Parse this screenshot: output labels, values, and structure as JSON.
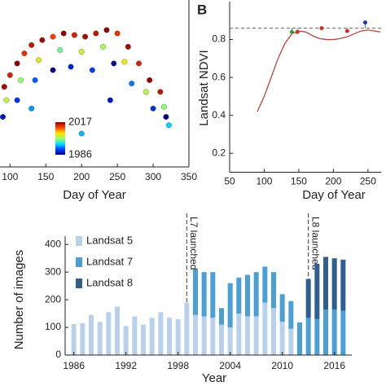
{
  "chart_data": [
    {
      "type": "scatter",
      "xlabel": "Day of Year",
      "xlim": [
        86,
        350
      ],
      "xticks": [
        100,
        150,
        200,
        250,
        300,
        350
      ],
      "ylim": [
        0,
        1
      ],
      "x": [
        92,
        100,
        110,
        120,
        130,
        145,
        160,
        175,
        190,
        205,
        220,
        235,
        250,
        265,
        280,
        295,
        310,
        95,
        115,
        140,
        170,
        200,
        230,
        260,
        290,
        315,
        90,
        110,
        135,
        160,
        185,
        215,
        245,
        270,
        300,
        318,
        130,
        200,
        240,
        322
      ],
      "values": [
        0.48,
        0.55,
        0.62,
        0.68,
        0.73,
        0.76,
        0.78,
        0.8,
        0.79,
        0.78,
        0.8,
        0.82,
        0.8,
        0.72,
        0.62,
        0.52,
        0.45,
        0.4,
        0.52,
        0.64,
        0.7,
        0.69,
        0.72,
        0.63,
        0.45,
        0.36,
        0.3,
        0.4,
        0.52,
        0.58,
        0.6,
        0.58,
        0.62,
        0.5,
        0.35,
        0.3,
        0.35,
        0.2,
        0.4,
        0.25
      ],
      "years": [
        2016,
        2014,
        2017,
        2013,
        2015,
        2016,
        2012,
        2017,
        2014,
        2016,
        2015,
        2017,
        2013,
        2016,
        2014,
        2017,
        2015,
        2003,
        2001,
        2005,
        2000,
        2004,
        2002,
        2006,
        2003,
        2001,
        1988,
        1990,
        1992,
        1986,
        1989,
        1991,
        1987,
        1993,
        1990,
        1986,
        1994,
        1995,
        1988,
        1996
      ],
      "colorbar": {
        "ticks": [
          1986,
          2017
        ],
        "colormap": [
          "#00008f",
          "#0040ff",
          "#00e0ff",
          "#a0ff60",
          "#ffe000",
          "#ff4000",
          "#8f0000"
        ]
      }
    },
    {
      "type": "line",
      "title": "B",
      "xlabel": "Day of Year",
      "ylabel": "Landsat NDVI",
      "xlim": [
        50,
        269
      ],
      "xticks": [
        50,
        100,
        150,
        200,
        250
      ],
      "ylim": [
        0.1,
        1.0
      ],
      "yticks": [
        0.2,
        0.4,
        0.6,
        0.8
      ],
      "series": [
        {
          "color": "#b5473a",
          "x": [
            90,
            100,
            110,
            120,
            130,
            140,
            150,
            160,
            170,
            180,
            190,
            200,
            210,
            220,
            230,
            240,
            250,
            260,
            268
          ],
          "values": [
            0.42,
            0.5,
            0.6,
            0.7,
            0.78,
            0.83,
            0.845,
            0.84,
            0.82,
            0.805,
            0.8,
            0.8,
            0.805,
            0.815,
            0.83,
            0.845,
            0.85,
            0.845,
            0.84
          ]
        }
      ],
      "points": {
        "x": [
          140,
          148,
          183,
          220,
          246
        ],
        "values": [
          0.84,
          0.84,
          0.86,
          0.845,
          0.89
        ],
        "colors": [
          "#3a9a3a",
          "#d03020",
          "#d03020",
          "#d03020",
          "#2030c0"
        ]
      },
      "reference_line": {
        "value": 0.86,
        "color": "#666666"
      }
    },
    {
      "type": "stacked_bar",
      "xlabel": "Year",
      "ylabel": "Number of images",
      "xlim": [
        1985,
        2018
      ],
      "xticks": [
        1986,
        1992,
        1998,
        2004,
        2010,
        2016
      ],
      "ylim": [
        0,
        430
      ],
      "yticks": [
        0,
        100,
        200,
        300,
        400
      ],
      "x": [
        1986,
        1987,
        1988,
        1989,
        1990,
        1991,
        1992,
        1993,
        1994,
        1995,
        1996,
        1997,
        1998,
        1999,
        2000,
        2001,
        2002,
        2003,
        2004,
        2005,
        2006,
        2007,
        2008,
        2009,
        2010,
        2011,
        2012,
        2013,
        2014,
        2015,
        2016,
        2017
      ],
      "series": [
        {
          "name": "Landsat 5",
          "color": "#b8d0e8",
          "values": [
            112,
            115,
            145,
            120,
            155,
            175,
            105,
            140,
            110,
            135,
            155,
            135,
            130,
            190,
            145,
            140,
            135,
            110,
            100,
            150,
            140,
            140,
            190,
            170,
            120,
            95,
            0,
            0,
            0,
            0,
            0,
            0
          ]
        },
        {
          "name": "Landsat 7",
          "color": "#4a9fd4",
          "values": [
            0,
            0,
            0,
            0,
            0,
            0,
            0,
            0,
            0,
            0,
            0,
            0,
            0,
            0,
            165,
            160,
            165,
            60,
            160,
            130,
            150,
            160,
            130,
            130,
            100,
            100,
            118,
            135,
            130,
            165,
            165,
            160
          ]
        },
        {
          "name": "Landsat 8",
          "color": "#2f5e8f",
          "values": [
            0,
            0,
            0,
            0,
            0,
            0,
            0,
            0,
            0,
            0,
            0,
            0,
            0,
            0,
            0,
            0,
            0,
            0,
            0,
            0,
            0,
            0,
            0,
            0,
            0,
            0,
            0,
            140,
            200,
            190,
            185,
            185
          ]
        }
      ],
      "annotations": [
        {
          "text": "L7 launched",
          "x": 1999
        },
        {
          "text": "L8 launched",
          "x": 2013
        }
      ]
    }
  ]
}
